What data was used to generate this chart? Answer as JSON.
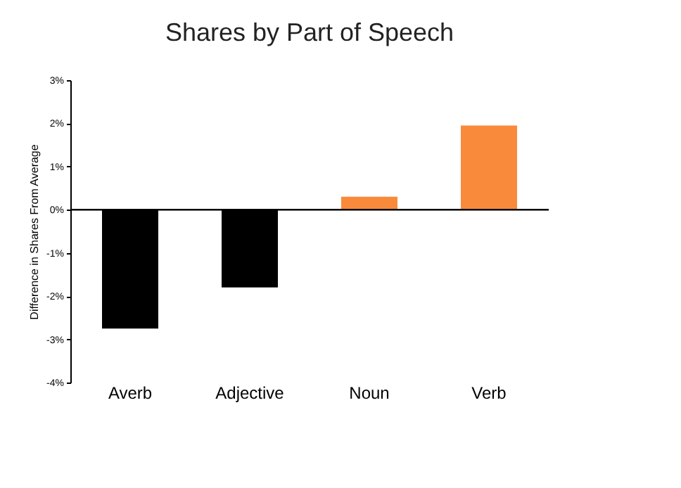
{
  "chart_data": {
    "type": "bar",
    "title": "Shares by Part of Speech",
    "ylabel": "Difference in Shares From Average",
    "categories": [
      "Averb",
      "Adjective",
      "Noun",
      "Verb"
    ],
    "values": [
      -2.75,
      -1.8,
      0.3,
      1.95
    ],
    "colors": [
      "#000000",
      "#000000",
      "#f98a3c",
      "#f98a3c"
    ],
    "ylim": [
      -4,
      3
    ],
    "yticks": [
      {
        "value": -4,
        "label": "-4%"
      },
      {
        "value": -3,
        "label": "-3%"
      },
      {
        "value": -2,
        "label": "-2%"
      },
      {
        "value": -1,
        "label": "-1%"
      },
      {
        "value": 0,
        "label": "0%"
      },
      {
        "value": 1,
        "label": "1%"
      },
      {
        "value": 2,
        "label": "2%"
      },
      {
        "value": 3,
        "label": "3%"
      }
    ],
    "ref_lines": [
      {
        "axis": "y",
        "value": 0,
        "color": "#000000"
      }
    ],
    "grid": false
  }
}
